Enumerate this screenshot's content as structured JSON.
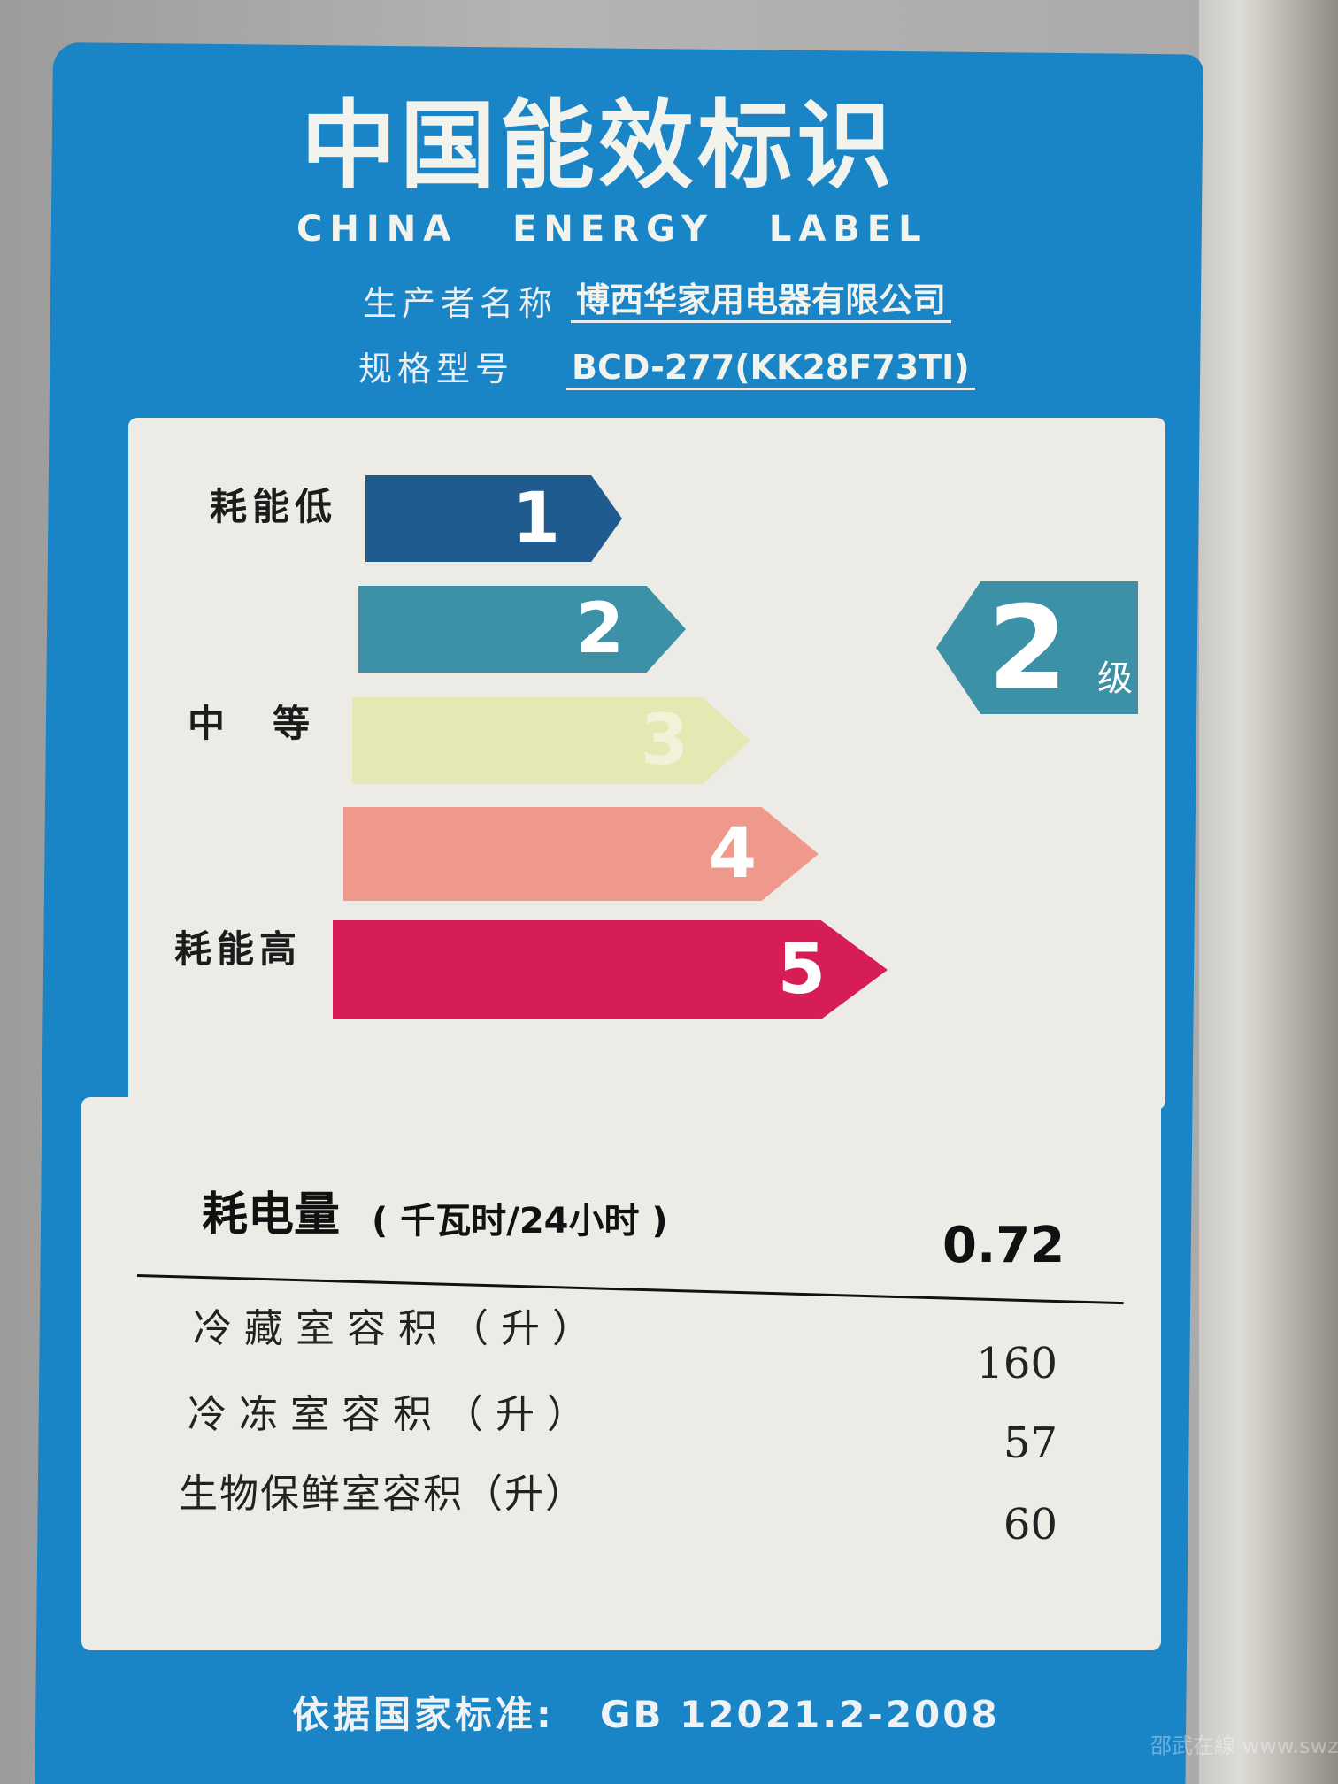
{
  "title_cn": "中国能效标识",
  "title_en": "CHINA ENERGY LABEL",
  "manufacturer": {
    "label": "生产者名称",
    "value": "博西华家用电器有限公司"
  },
  "model": {
    "label": "规格型号",
    "value": "BCD-277(KK28F73TI)"
  },
  "scale": {
    "low_label": "耗能低",
    "mid_label": "中　等",
    "high_label": "耗能高",
    "grades": [
      {
        "number": "1",
        "color": "#1f5b8e"
      },
      {
        "number": "2",
        "color": "#3c91a7"
      },
      {
        "number": "3",
        "color": "#e6e8b4"
      },
      {
        "number": "4",
        "color": "#ee998b"
      },
      {
        "number": "5",
        "color": "#d71d55"
      }
    ],
    "rating": {
      "value": "2",
      "unit": "级",
      "color": "#3c91a7"
    }
  },
  "consumption": {
    "label": "耗电量",
    "unit": "( 千瓦时/24小时 )",
    "value": "0.72"
  },
  "volumes": [
    {
      "label": "冷藏室容积（升）",
      "value": "160"
    },
    {
      "label": "冷冻室容积（升）",
      "value": "57"
    },
    {
      "label": "生物保鲜室容积（升）",
      "value": "60"
    }
  ],
  "standard": {
    "label": "依据国家标准:",
    "value": "GB 12021.2-2008"
  },
  "watermark": "邵武在線 www.swzx.com"
}
